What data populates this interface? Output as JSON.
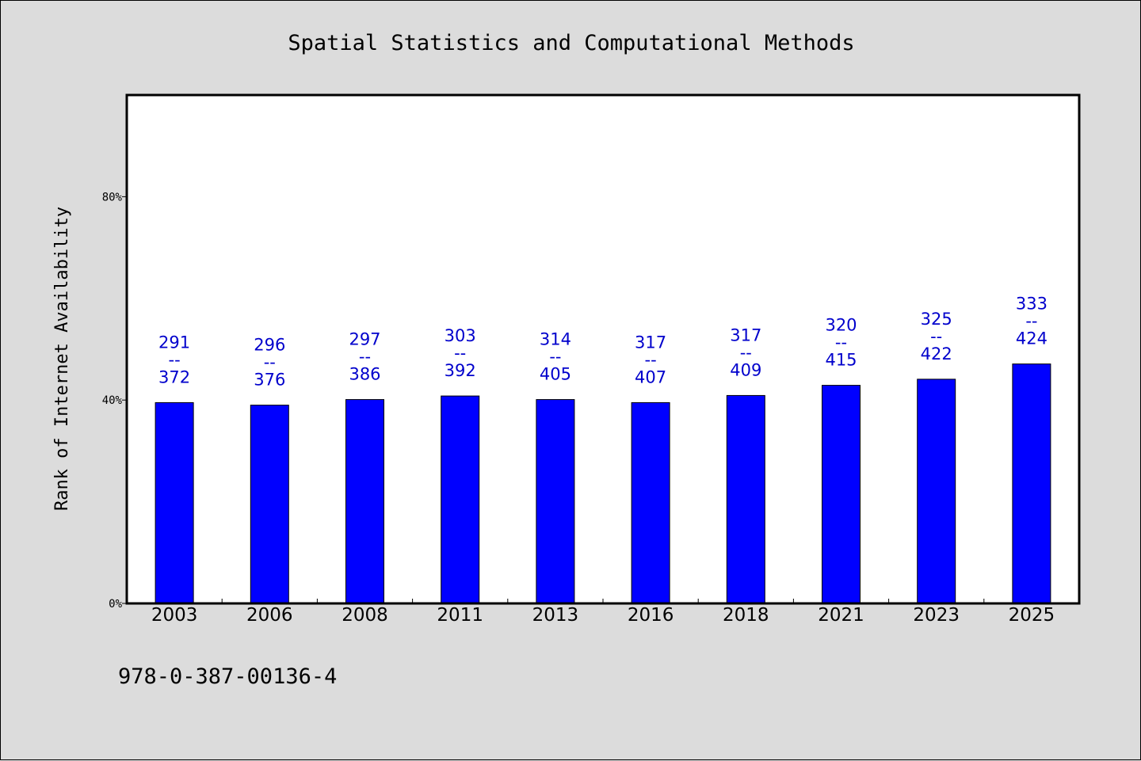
{
  "chart_data": {
    "type": "bar",
    "title": "Spatial Statistics and Computational Methods",
    "xlabel": "",
    "ylabel": "Rank of Internet Availability",
    "categories": [
      "2003",
      "2006",
      "2008",
      "2011",
      "2013",
      "2016",
      "2018",
      "2021",
      "2023",
      "2025"
    ],
    "values": [
      39.5,
      39.0,
      40.1,
      40.8,
      40.1,
      39.5,
      40.9,
      42.9,
      44.1,
      47.1
    ],
    "labels": [
      {
        "top": "291",
        "sep": "--",
        "bottom": "372"
      },
      {
        "top": "296",
        "sep": "--",
        "bottom": "376"
      },
      {
        "top": "297",
        "sep": "--",
        "bottom": "386"
      },
      {
        "top": "303",
        "sep": "--",
        "bottom": "392"
      },
      {
        "top": "314",
        "sep": "--",
        "bottom": "405"
      },
      {
        "top": "317",
        "sep": "--",
        "bottom": "407"
      },
      {
        "top": "317",
        "sep": "--",
        "bottom": "409"
      },
      {
        "top": "320",
        "sep": "--",
        "bottom": "415"
      },
      {
        "top": "325",
        "sep": "--",
        "bottom": "422"
      },
      {
        "top": "333",
        "sep": "--",
        "bottom": "424"
      }
    ],
    "ylim": [
      0,
      100
    ],
    "yticks": [
      {
        "value": 0,
        "label": "0%"
      },
      {
        "value": 40,
        "label": "40%"
      },
      {
        "value": 80,
        "label": "80%"
      }
    ],
    "grid": false,
    "legend": "none"
  },
  "footer": {
    "isbn": "978-0-387-00136-4"
  },
  "colors": {
    "bar_fill": "#0000ff",
    "label_color": "#0000cc",
    "plot_background": "#ffffff",
    "page_background": "#dcdcdc"
  }
}
